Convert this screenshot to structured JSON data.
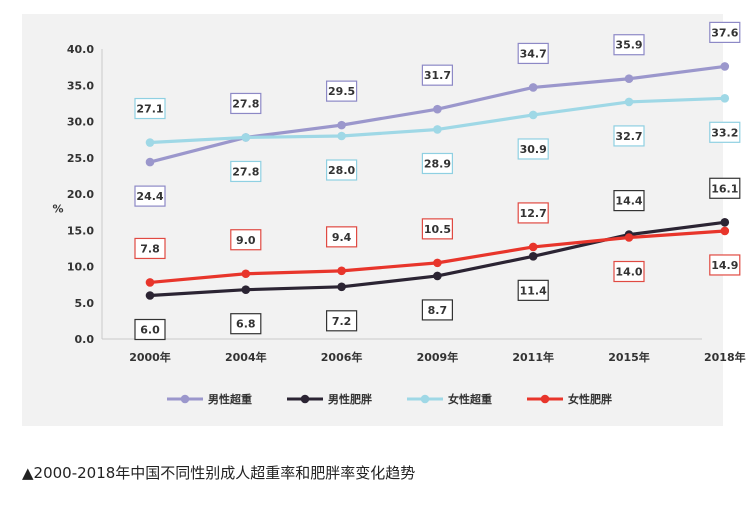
{
  "caption": "▲2000-2018年中国不同性别成人超重率和肥胖率变化趋势",
  "chart_data": {
    "type": "line",
    "categories": [
      "2000年",
      "2004年",
      "2006年",
      "2009年",
      "2011年",
      "2015年",
      "2018年"
    ],
    "ylabel": "%",
    "ylim": [
      0,
      40
    ],
    "yticks": [
      "0.0",
      "5.0",
      "10.0",
      "15.0",
      "20.0",
      "25.0",
      "30.0",
      "35.0",
      "40.0"
    ],
    "grid": false,
    "legend": "bottom",
    "series": [
      {
        "name": "男性超重",
        "color": "#9b97cc",
        "label_color": "#8d89c6",
        "values": [
          24.4,
          27.8,
          29.5,
          31.7,
          34.7,
          35.9,
          37.6
        ],
        "label_pos": [
          "below",
          "above",
          "above",
          "above",
          "above",
          "above",
          "above"
        ]
      },
      {
        "name": "男性肥胖",
        "color": "#2b2433",
        "label_color": "#333333",
        "values": [
          6.0,
          6.8,
          7.2,
          8.7,
          11.4,
          14.4,
          16.1
        ],
        "label_pos": [
          "below",
          "below",
          "below",
          "below",
          "below",
          "above",
          "above"
        ]
      },
      {
        "name": "女性超重",
        "color": "#9fd8e6",
        "label_color": "#8fd0e2",
        "values": [
          27.1,
          27.8,
          28.0,
          28.9,
          30.9,
          32.7,
          33.2
        ],
        "label_pos": [
          "above",
          "below",
          "below",
          "below",
          "below",
          "below",
          "below"
        ]
      },
      {
        "name": "女性肥胖",
        "color": "#e8352b",
        "label_color": "#e04a42",
        "values": [
          7.8,
          9.0,
          9.4,
          10.5,
          12.7,
          14.0,
          14.9
        ],
        "label_pos": [
          "above",
          "above",
          "above",
          "above",
          "above",
          "below",
          "below"
        ]
      }
    ]
  }
}
